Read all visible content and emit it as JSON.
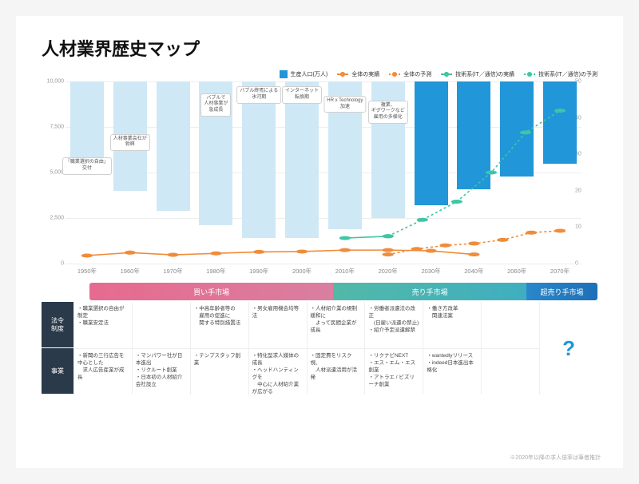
{
  "title": "人材業界歴史マップ",
  "chart": {
    "type": "bar+line",
    "background_color": "#ffffff",
    "grid_color": "#eeeeee",
    "left_axis": {
      "max": 10000,
      "ticks": [
        0,
        2500,
        5000,
        7500,
        10000
      ]
    },
    "right_axis": {
      "max": 50,
      "ticks": [
        0,
        10,
        20,
        30,
        40,
        50
      ]
    },
    "legend": [
      {
        "label": "生産人口(万人)",
        "type": "square",
        "color": "#2196d8"
      },
      {
        "label": "全体の実績",
        "type": "line",
        "color": "#f08c3a"
      },
      {
        "label": "全体の予測",
        "type": "dash",
        "color": "#f08c3a"
      },
      {
        "label": "技術系(IT／通信)の実績",
        "type": "line",
        "color": "#3fc5a6"
      },
      {
        "label": "技術系(IT／通信)の予測",
        "type": "dash",
        "color": "#3fc5a6"
      }
    ],
    "bar_colors": {
      "past": "#cfe8f5",
      "future": "#2196d8"
    },
    "categories": [
      "1950年",
      "1960年",
      "1970年",
      "1980年",
      "1990年",
      "2000年",
      "2010年",
      "2020年",
      "2030年",
      "2040年",
      "2060年",
      "2070年"
    ],
    "bars": [
      4700,
      6000,
      7100,
      7900,
      8600,
      8600,
      8100,
      7500,
      6800,
      5900,
      5200,
      4500
    ],
    "future_start_index": 8,
    "bar_annotations": [
      {
        "index": 0,
        "text": "「職業選択の自由」\n交付"
      },
      {
        "index": 1,
        "text": "人材事業会社が\n勃興"
      },
      {
        "index": 3,
        "text": "バブルで\n人材事業が\n急成長"
      },
      {
        "index": 4,
        "text": "バブル終焉による\n氷河期"
      },
      {
        "index": 5,
        "text": "インターネット\n転換期"
      },
      {
        "index": 6,
        "text": "HR x Technology\n加速"
      },
      {
        "index": 7,
        "text": "複業、\nギグワークなど\n雇用の多様化"
      }
    ],
    "line_orange_actual": [
      2.2,
      3.0,
      2.4,
      2.8,
      3.2,
      3.3,
      3.7,
      3.7,
      3.5,
      2.5
    ],
    "line_orange_forecast_start": 7,
    "line_orange_forecast": [
      2.5,
      4.0,
      5.0,
      5.5,
      6.5,
      8.5,
      9.0
    ],
    "line_teal_actual": [
      7.0,
      7.5
    ],
    "line_teal_actual_start": 6,
    "line_teal_forecast_start": 7,
    "line_teal_forecast": [
      7.5,
      12,
      17,
      25,
      36,
      42
    ],
    "line_width": 1.6,
    "marker_radius": 2.2
  },
  "eras": [
    {
      "label": "買い手市場",
      "width_pct": 48,
      "color_from": "#e76a8f",
      "color_to": "#d97fa0"
    },
    {
      "label": "売り手市場",
      "width_pct": 38,
      "color_from": "#52b9a8",
      "color_to": "#3faec0"
    },
    {
      "label": "超売り手市場",
      "width_pct": 14,
      "color_from": "#2a87c9",
      "color_to": "#1e70b8"
    }
  ],
  "timeline": {
    "row_labels": [
      "法令\n制度",
      "事業"
    ],
    "columns": [
      {
        "law": "・職業選択の自由が制定\n・職業安定法",
        "biz": "・新聞の三行広告を中心とした\n　求人広告産業が成長"
      },
      {
        "law": "",
        "biz": "・マンパワー社が日本進出\n・リクルート創業\n・日本初の人材紹介会社設立"
      },
      {
        "law": "・中高年齢者等の\n　雇用の促進に\n　関する特別措置法",
        "biz": "・テンプスタッフ創業"
      },
      {
        "law": "・男女雇用機会均等法",
        "biz": "・特化型求人媒体の成長\n・ヘッドハンティングを\n　中心に人材紹介業が広がる"
      },
      {
        "law": "・人材紹介業の規制緩和に\n　よって民間企業が成長",
        "biz": "・固定費をリスク視、\n　人材派遣活用が活発"
      },
      {
        "law": "・労働者派遣法の改正\n　(日雇い派遣の禁止)\n・紹介予定派遣解禁",
        "biz": "・リクナビNEXT\n・エス・エム・エス創業\n・アトラエ / ビズリーチ創業"
      },
      {
        "law": "・働き方改革\n　関連法案",
        "biz": "・wantedlyリリース\n・indeed日本進出本格化"
      },
      {
        "law": "",
        "biz": ""
      }
    ],
    "q_mark": "?"
  },
  "footnote": "※2020年以降の求人倍率は筆者推計"
}
